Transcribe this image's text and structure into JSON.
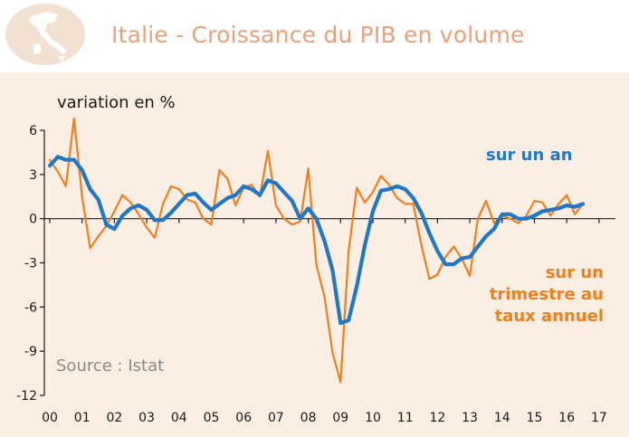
{
  "colors": {
    "title": "#e7a27a",
    "background": "#fbeee2",
    "badge": "#f3e1d2",
    "annual": "#1f78c8",
    "quarterly": "#f07f1e",
    "source": "#8a8a8a"
  },
  "header": {
    "icon": "italy-map-icon",
    "title": "Italie - Croissance du PIB en volume"
  },
  "chart_data": {
    "type": "line",
    "title": "Italie - Croissance du PIB en volume",
    "ylabel": "variation en %",
    "xlabel": "",
    "source": "Source : Istat",
    "ylim": [
      -12,
      6
    ],
    "xlim": [
      2000,
      2017.5
    ],
    "yticks": [
      6,
      3,
      0,
      -3,
      -6,
      -9,
      -12
    ],
    "yticklabels": [
      "6",
      "3",
      "0",
      "-3",
      "-6",
      "-9",
      "-12"
    ],
    "xticks": [
      2000,
      2001,
      2002,
      2003,
      2004,
      2005,
      2006,
      2007,
      2008,
      2009,
      2010,
      2011,
      2012,
      2013,
      2014,
      2015,
      2016,
      2017
    ],
    "xticklabels": [
      "00",
      "01",
      "02",
      "03",
      "04",
      "05",
      "06",
      "07",
      "08",
      "09",
      "10",
      "11",
      "12",
      "13",
      "14",
      "15",
      "16",
      "17"
    ],
    "grid": false,
    "series": [
      {
        "name": "sur un trimestre au taux annuel",
        "legend": [
          "sur un",
          "trimestre au",
          "taux annuel"
        ],
        "color": "#f07f1e",
        "x": [
          2000.0,
          2000.25,
          2000.5,
          2000.75,
          2001.0,
          2001.25,
          2001.5,
          2001.75,
          2002.0,
          2002.25,
          2002.5,
          2002.75,
          2003.0,
          2003.25,
          2003.5,
          2003.75,
          2004.0,
          2004.25,
          2004.5,
          2004.75,
          2005.0,
          2005.25,
          2005.5,
          2005.75,
          2006.0,
          2006.25,
          2006.5,
          2006.75,
          2007.0,
          2007.25,
          2007.5,
          2007.75,
          2008.0,
          2008.25,
          2008.5,
          2008.75,
          2009.0,
          2009.25,
          2009.5,
          2009.75,
          2010.0,
          2010.25,
          2010.5,
          2010.75,
          2011.0,
          2011.25,
          2011.5,
          2011.75,
          2012.0,
          2012.25,
          2012.5,
          2012.75,
          2013.0,
          2013.25,
          2013.5,
          2013.75,
          2014.0,
          2014.25,
          2014.5,
          2014.75,
          2015.0,
          2015.25,
          2015.5,
          2015.75,
          2016.0,
          2016.25,
          2016.5
        ],
        "values": [
          4.0,
          3.2,
          2.2,
          6.8,
          1.5,
          -2.0,
          -1.2,
          -0.5,
          0.5,
          1.6,
          1.1,
          0.3,
          -0.6,
          -1.3,
          1.0,
          2.2,
          2.0,
          1.3,
          1.1,
          0.0,
          -0.4,
          3.3,
          2.7,
          0.9,
          2.1,
          2.3,
          1.5,
          4.6,
          0.9,
          0.0,
          -0.4,
          -0.2,
          3.4,
          -3.1,
          -5.3,
          -9.1,
          -11.1,
          -2.2,
          2.1,
          1.1,
          1.8,
          2.9,
          2.3,
          1.4,
          1.0,
          1.0,
          -1.8,
          -4.1,
          -3.8,
          -2.6,
          -1.9,
          -2.7,
          -3.9,
          0.0,
          1.2,
          -0.3,
          0.2,
          0.0,
          -0.3,
          0.2,
          1.2,
          1.1,
          0.2,
          1.0,
          1.6,
          0.3,
          1.0
        ]
      },
      {
        "name": "sur un an",
        "legend": [
          "sur un an"
        ],
        "color": "#1f78c8",
        "x": [
          2000.0,
          2000.25,
          2000.5,
          2000.75,
          2001.0,
          2001.25,
          2001.5,
          2001.75,
          2002.0,
          2002.25,
          2002.5,
          2002.75,
          2003.0,
          2003.25,
          2003.5,
          2003.75,
          2004.0,
          2004.25,
          2004.5,
          2004.75,
          2005.0,
          2005.25,
          2005.5,
          2005.75,
          2006.0,
          2006.25,
          2006.5,
          2006.75,
          2007.0,
          2007.25,
          2007.5,
          2007.75,
          2008.0,
          2008.25,
          2008.5,
          2008.75,
          2009.0,
          2009.25,
          2009.5,
          2009.75,
          2010.0,
          2010.25,
          2010.5,
          2010.75,
          2011.0,
          2011.25,
          2011.5,
          2011.75,
          2012.0,
          2012.25,
          2012.5,
          2012.75,
          2013.0,
          2013.25,
          2013.5,
          2013.75,
          2014.0,
          2014.25,
          2014.5,
          2014.75,
          2015.0,
          2015.25,
          2015.5,
          2015.75,
          2016.0,
          2016.25,
          2016.5
        ],
        "values": [
          3.6,
          4.2,
          4.0,
          4.0,
          3.3,
          2.0,
          1.3,
          -0.4,
          -0.7,
          0.2,
          0.7,
          0.9,
          0.6,
          -0.1,
          -0.1,
          0.4,
          1.0,
          1.6,
          1.7,
          1.1,
          0.6,
          1.0,
          1.4,
          1.6,
          2.2,
          2.0,
          1.6,
          2.6,
          2.4,
          1.8,
          1.2,
          0.0,
          0.7,
          0.0,
          -1.5,
          -3.5,
          -7.1,
          -6.9,
          -4.6,
          -1.8,
          0.5,
          1.9,
          2.0,
          2.2,
          2.0,
          1.4,
          0.4,
          -1.0,
          -2.2,
          -3.1,
          -3.1,
          -2.7,
          -2.6,
          -1.9,
          -1.2,
          -0.7,
          0.3,
          0.3,
          0.0,
          0.0,
          0.2,
          0.5,
          0.6,
          0.7,
          0.9,
          0.8,
          1.0
        ]
      }
    ]
  }
}
